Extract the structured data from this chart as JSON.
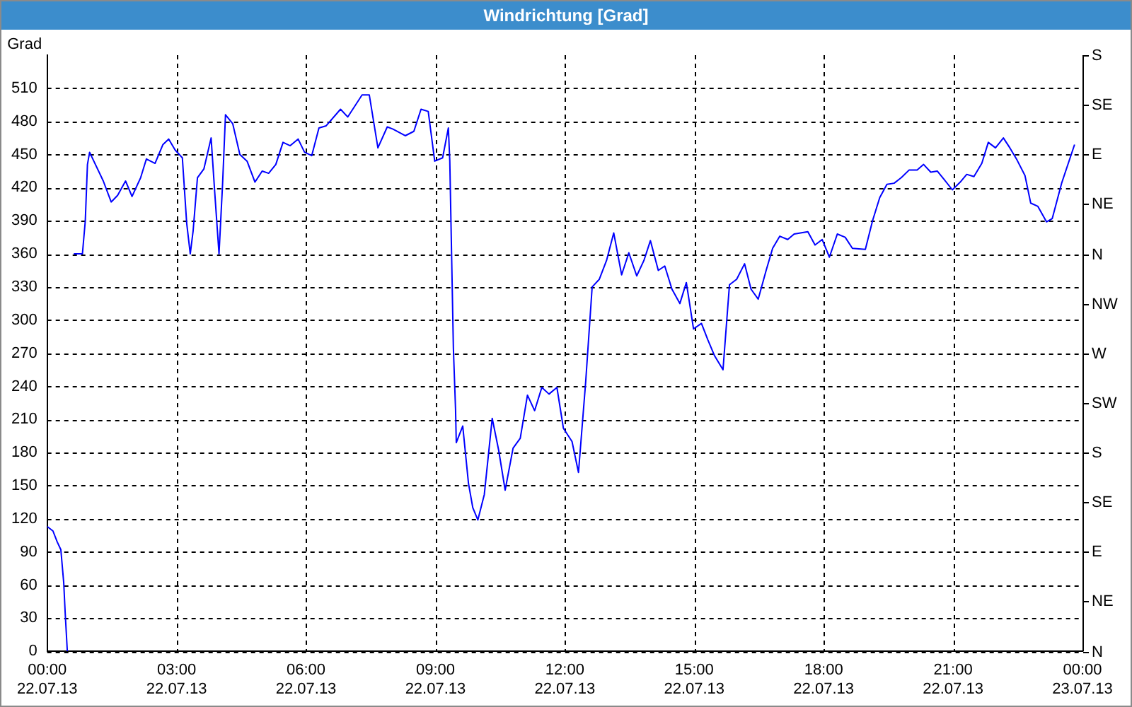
{
  "chart_data": {
    "type": "line",
    "title": "Windrichtung [Grad]",
    "ylabel": "Grad",
    "x": [
      "--07-22T00:00",
      "--07-22T00:08",
      "--07-22T00:14",
      "--07-22T00:19",
      "--07-22T00:23",
      "--07-22T00:25",
      "--07-22T00:28",
      "--07-22T00:30",
      "--07-22T00:37",
      "--07-22T00:49",
      "--07-22T00:53",
      "--07-22T00:56",
      "--07-22T00:59",
      "--07-22T01:18",
      "--07-22T01:29",
      "--07-22T01:38",
      "--07-22T01:49",
      "--07-22T01:58",
      "--07-22T02:10",
      "--07-22T02:18",
      "--07-22T02:30",
      "--07-22T02:41",
      "--07-22T02:49",
      "--07-22T02:58",
      "--07-22T03:08",
      "--07-22T03:14",
      "--07-22T03:19",
      "--07-22T03:23",
      "--07-22T03:29",
      "--07-22T03:38",
      "--07-22T03:48",
      "--07-22T03:53",
      "--07-22T03:59",
      "--07-22T04:04",
      "--07-22T04:08",
      "--07-22T04:18",
      "--07-22T04:28",
      "--07-22T04:38",
      "--07-22T04:49",
      "--07-22T04:59",
      "--07-22T05:08",
      "--07-22T05:18",
      "--07-22T05:28",
      "--07-22T05:38",
      "--07-22T05:49",
      "--07-22T05:58",
      "--07-22T06:08",
      "--07-22T06:18",
      "--07-22T06:28",
      "--07-22T06:48",
      "--07-22T06:58",
      "--07-22T07:18",
      "--07-22T07:28",
      "--07-22T07:40",
      "--07-22T07:53",
      "--07-22T08:01",
      "--07-22T08:18",
      "--07-22T08:30",
      "--07-22T08:40",
      "--07-22T08:50",
      "--07-22T08:59",
      "--07-22T09:10",
      "--07-22T09:18",
      "--07-22T09:20",
      "--07-22T09:25",
      "--07-22T09:28",
      "--07-22T09:29",
      "--07-22T09:38",
      "--07-22T09:46",
      "--07-22T09:52",
      "--07-22T09:59",
      "--07-22T10:08",
      "--07-22T10:19",
      "--07-22T10:28",
      "--07-22T10:37",
      "--07-22T10:48",
      "--07-22T10:58",
      "--07-22T11:08",
      "--07-22T11:18",
      "--07-22T11:28",
      "--07-22T11:38",
      "--07-22T11:49",
      "--07-22T11:58",
      "--07-22T12:10",
      "--07-22T12:19",
      "--07-22T12:29",
      "--07-22T12:38",
      "--07-22T12:48",
      "--07-22T12:58",
      "--07-22T13:08",
      "--07-22T13:19",
      "--07-22T13:29",
      "--07-22T13:40",
      "--07-22T13:50",
      "--07-22T13:59",
      "--07-22T14:10",
      "--07-22T14:19",
      "--07-22T14:29",
      "--07-22T14:40",
      "--07-22T14:49",
      "--07-22T14:59",
      "--07-22T15:10",
      "--07-22T15:19",
      "--07-22T15:28",
      "--07-22T15:40",
      "--07-22T15:49",
      "--07-22T15:59",
      "--07-22T16:10",
      "--07-22T16:19",
      "--07-22T16:29",
      "--07-22T16:40",
      "--07-22T16:49",
      "--07-22T16:59",
      "--07-22T17:10",
      "--07-22T17:19",
      "--07-22T17:38",
      "--07-22T17:48",
      "--07-22T17:58",
      "--07-22T18:08",
      "--07-22T18:19",
      "--07-22T18:30",
      "--07-22T18:40",
      "--07-22T18:58",
      "--07-22T19:08",
      "--07-22T19:18",
      "--07-22T19:28",
      "--07-22T19:38",
      "--07-22T19:48",
      "--07-22T19:59",
      "--07-22T20:10",
      "--07-22T20:19",
      "--07-22T20:29",
      "--07-22T20:38",
      "--07-22T20:48",
      "--07-22T20:59",
      "--07-22T21:10",
      "--07-22T21:19",
      "--07-22T21:29",
      "--07-22T21:40",
      "--07-22T21:49",
      "--07-22T21:59",
      "--07-22T22:10",
      "--07-22T22:19",
      "--07-22T22:29",
      "--07-22T22:40",
      "--07-22T22:48",
      "--07-22T22:58",
      "--07-22T23:10",
      "--07-22T23:18",
      "--07-22T23:31",
      "--07-22T23:49"
    ],
    "series": [
      {
        "color": "#0000ff",
        "values": [
          113,
          109,
          99,
          92,
          62,
          35,
          0,
          null,
          360,
          360,
          390,
          441,
          452,
          426,
          407,
          413,
          426,
          412,
          429,
          446,
          442,
          459,
          464,
          454,
          447,
          388,
          360,
          381,
          429,
          437,
          465,
          416,
          360,
          424,
          486,
          478,
          450,
          444,
          425,
          435,
          433,
          441,
          461,
          458,
          464,
          452,
          449,
          474,
          476,
          491,
          484,
          504,
          504,
          456,
          475,
          473,
          467,
          471,
          491,
          489,
          444,
          447,
          474,
          444,
          274,
          219,
          189,
          204,
          152,
          130,
          119,
          142,
          211,
          182,
          146,
          184,
          193,
          232,
          218,
          239,
          233,
          239,
          202,
          190,
          162,
          244,
          330,
          337,
          354,
          379,
          341,
          361,
          340,
          354,
          372,
          345,
          349,
          328,
          315,
          334,
          292,
          297,
          282,
          268,
          255,
          332,
          337,
          351,
          328,
          319,
          345,
          365,
          376,
          373,
          378,
          380,
          368,
          373,
          357,
          378,
          375,
          365,
          364,
          390,
          411,
          423,
          424,
          429,
          436,
          436,
          441,
          434,
          435,
          427,
          418,
          425,
          432,
          430,
          442,
          461,
          456,
          465,
          456,
          445,
          431,
          406,
          403,
          389,
          392,
          424,
          459
        ]
      }
    ],
    "xlim": [
      "--07-22T00:00",
      "--07-23T00:00"
    ],
    "xticks": [
      {
        "value": "--07-22T00:00",
        "label": "00:00\n22.07.13"
      },
      {
        "value": "--07-22T03:00",
        "label": "03:00\n22.07.13"
      },
      {
        "value": "--07-22T06:00",
        "label": "06:00\n22.07.13"
      },
      {
        "value": "--07-22T09:00",
        "label": "09:00\n22.07.13"
      },
      {
        "value": "--07-22T12:00",
        "label": "12:00\n22.07.13"
      },
      {
        "value": "--07-22T15:00",
        "label": "15:00\n22.07.13"
      },
      {
        "value": "--07-22T18:00",
        "label": "18:00\n22.07.13"
      },
      {
        "value": "--07-22T21:00",
        "label": "21:00\n22.07.13"
      },
      {
        "value": "--07-23T00:00",
        "label": "00:00\n23.07.13"
      }
    ],
    "ylim": [
      0,
      540
    ],
    "yticks": [
      0,
      30,
      60,
      90,
      120,
      150,
      180,
      210,
      240,
      270,
      300,
      330,
      360,
      390,
      420,
      450,
      480,
      510
    ],
    "annotations": [
      "N",
      "NE",
      "E",
      "SE",
      "S",
      "SW",
      "W",
      "NW",
      "N",
      "NE",
      "E",
      "SE",
      "S"
    ],
    "grid": true,
    "marker": "none",
    "line_style": "solid"
  }
}
